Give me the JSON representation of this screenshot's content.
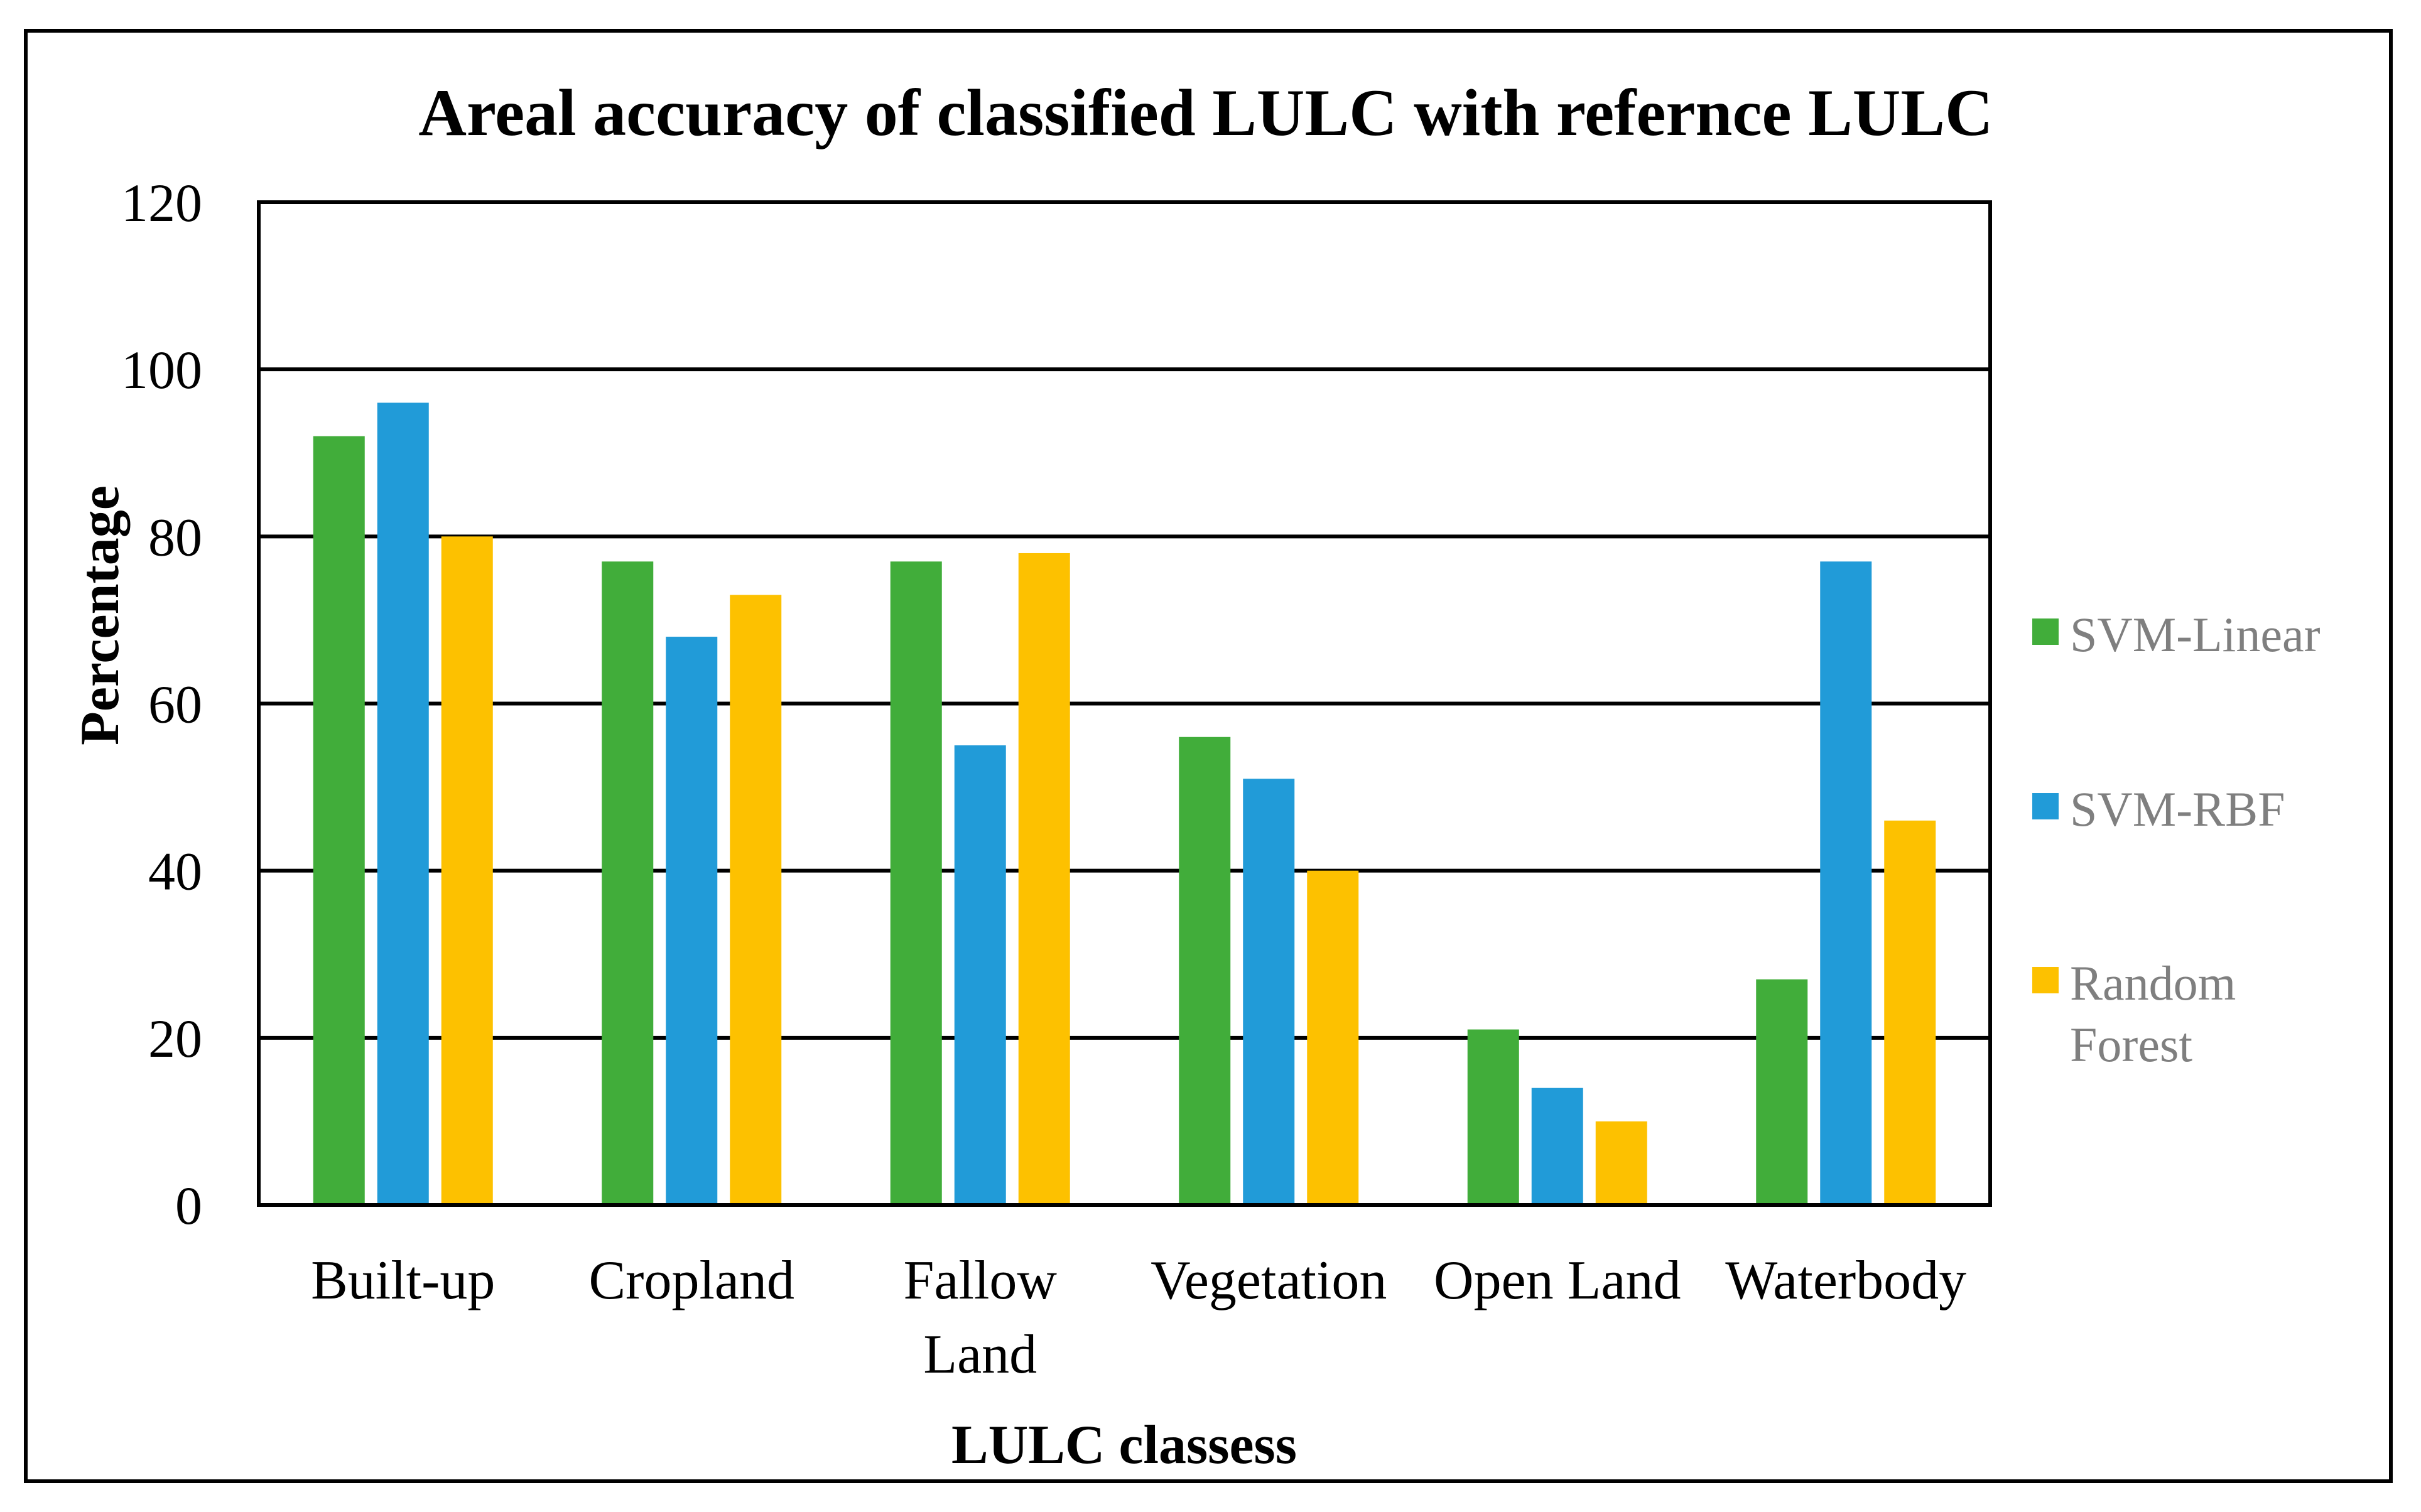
{
  "chart_data": {
    "type": "bar",
    "title": "Areal accuracy of classified LULC with refernce LULC",
    "xlabel": "LULC classess",
    "ylabel": "Percentage",
    "ylim": [
      0,
      120
    ],
    "yticks": [
      0,
      20,
      40,
      60,
      80,
      100,
      120
    ],
    "grid": true,
    "legend_position": "right",
    "categories": [
      [
        "Built-up"
      ],
      [
        "Cropland"
      ],
      [
        "Fallow",
        "Land"
      ],
      [
        "Vegetation"
      ],
      [
        "Open Land"
      ],
      [
        "Waterbody"
      ]
    ],
    "series": [
      {
        "name": "SVM-Linear",
        "color": "#41AD3A",
        "legend_lines": [
          "SVM-Linear"
        ],
        "values": [
          92,
          77,
          77,
          56,
          21,
          27
        ]
      },
      {
        "name": "SVM-RBF",
        "color": "#219BD8",
        "legend_lines": [
          "SVM-RBF"
        ],
        "values": [
          96,
          68,
          55,
          51,
          14,
          77
        ]
      },
      {
        "name": "Random Forest",
        "color": "#FDC100",
        "legend_lines": [
          "Random",
          "Forest"
        ],
        "values": [
          80,
          73,
          78,
          40,
          10,
          46
        ]
      }
    ]
  }
}
